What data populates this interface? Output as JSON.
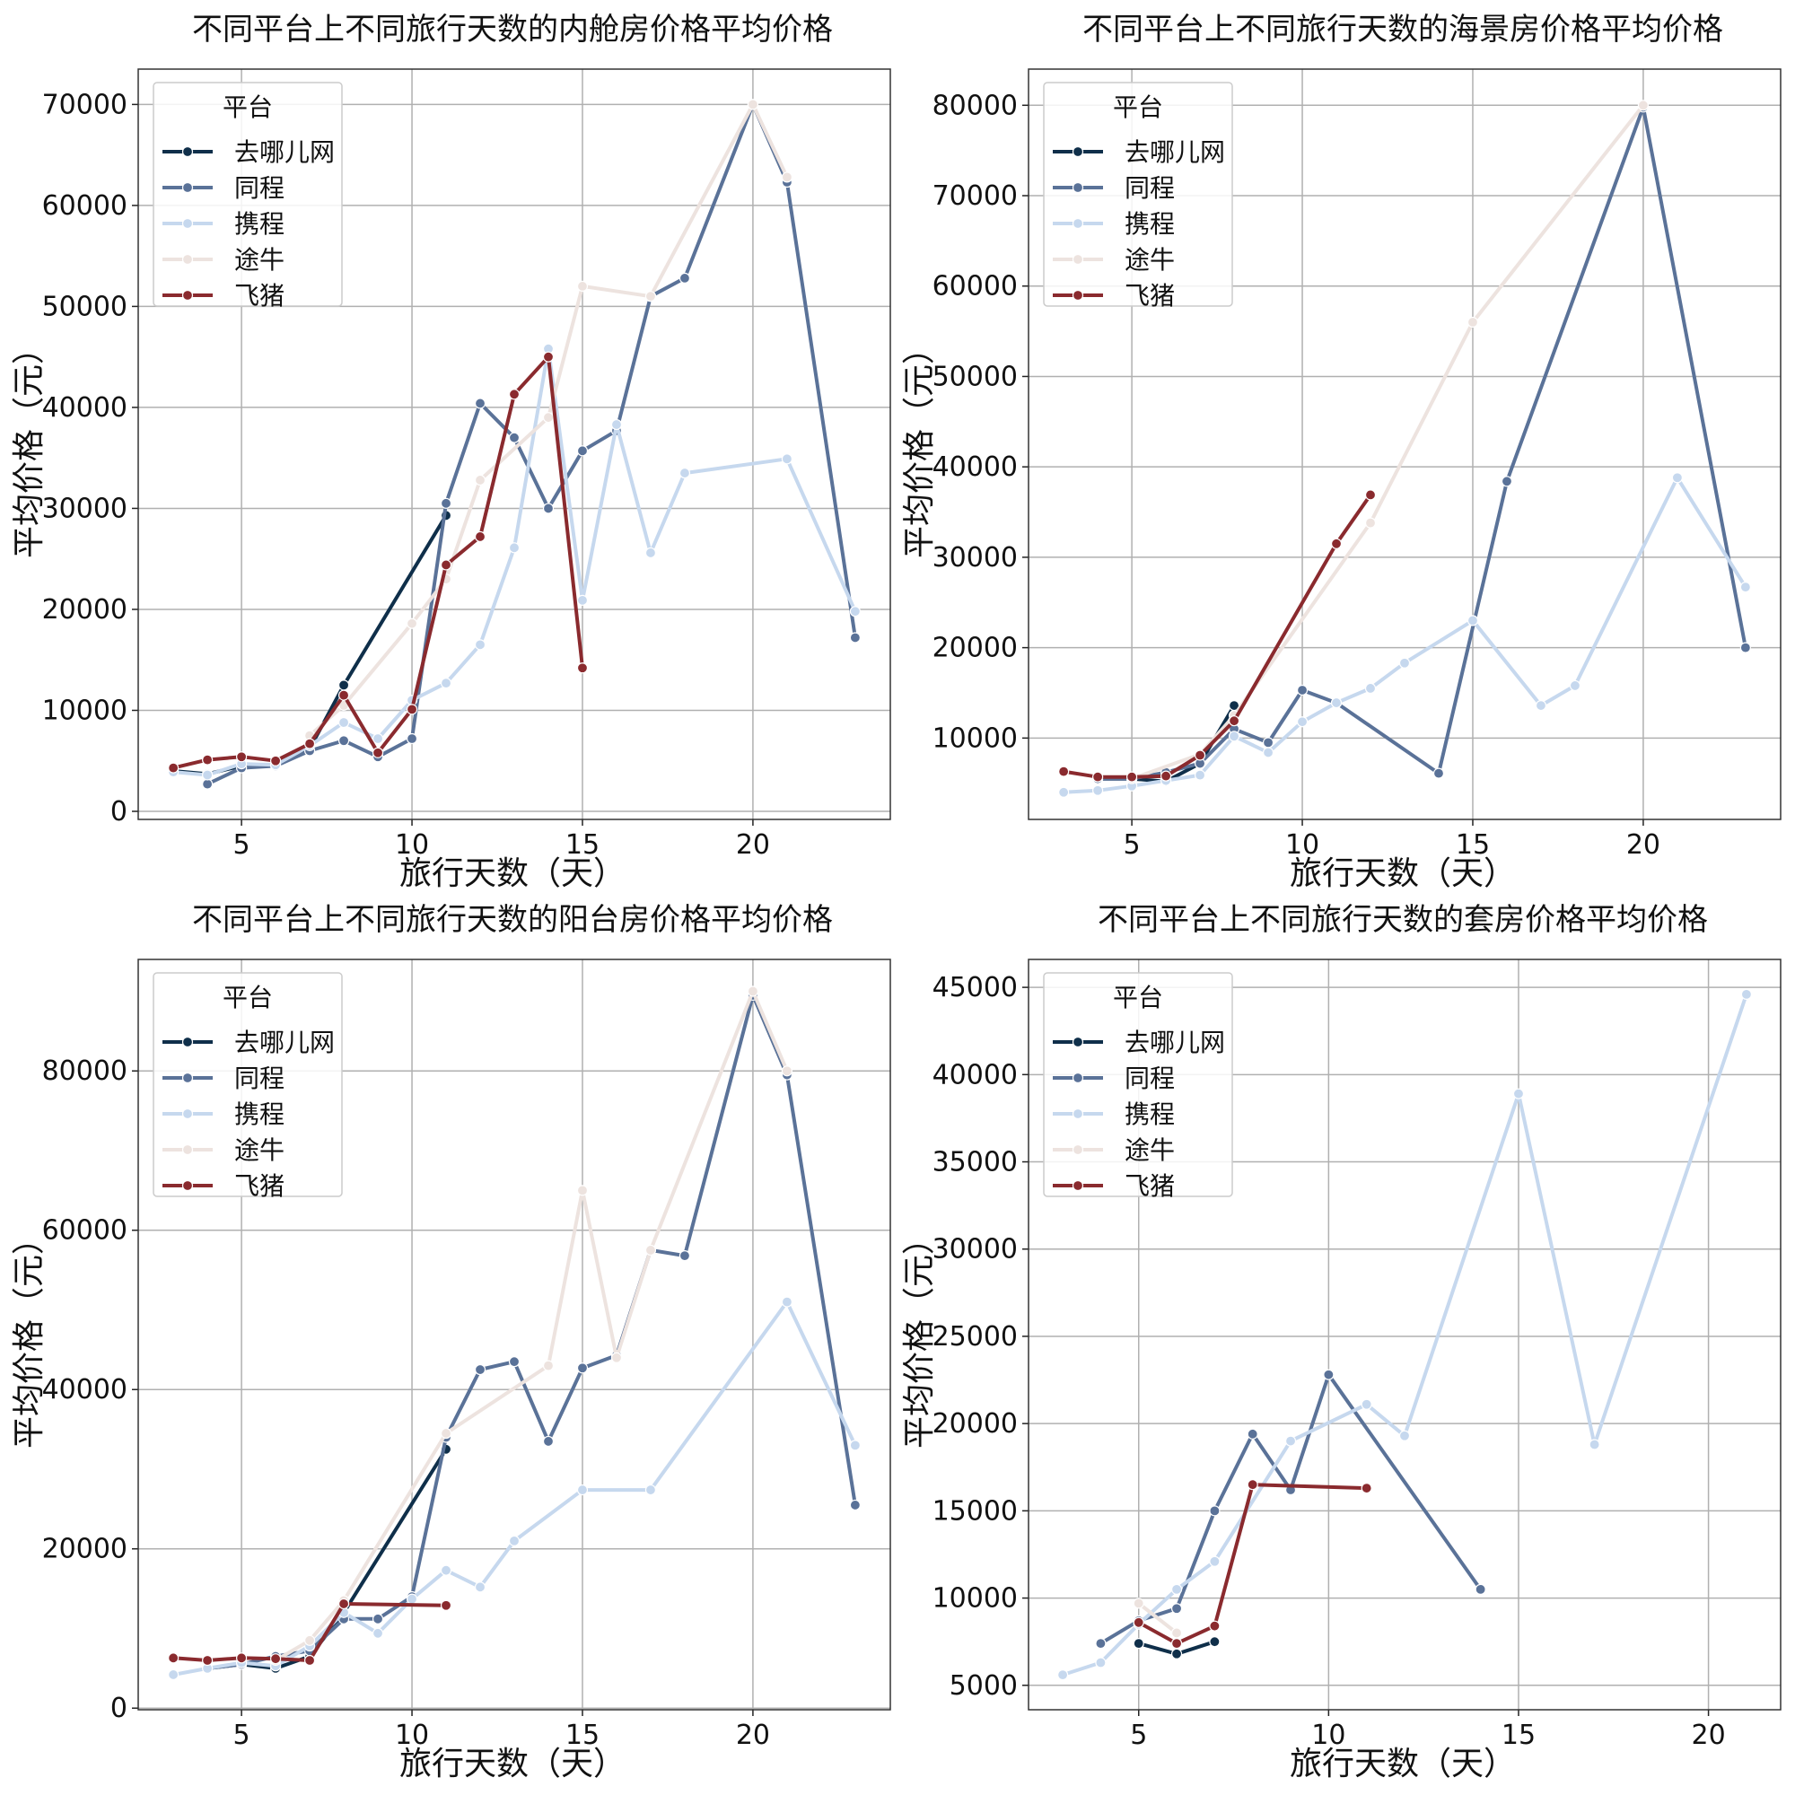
{
  "legend": {
    "title": "平台",
    "platforms": [
      {
        "name": "去哪儿网",
        "color": "#0f2f4a"
      },
      {
        "name": "同程",
        "color": "#5a7298"
      },
      {
        "name": "携程",
        "color": "#c6d8ee"
      },
      {
        "name": "途牛",
        "color": "#ede3df"
      },
      {
        "name": "飞猪",
        "color": "#8a2a2e"
      }
    ]
  },
  "chart_data": [
    {
      "type": "line",
      "title": "不同平台上不同旅行天数的内舱房价格平均价格",
      "xlabel": "旅行天数（天）",
      "ylabel": "平均价格（元）",
      "xlim": [
        1.97,
        24.03
      ],
      "ylim": [
        -800,
        73500
      ],
      "xticks": [
        5,
        10,
        15,
        20
      ],
      "yticks": [
        0,
        10000,
        20000,
        30000,
        40000,
        50000,
        60000,
        70000
      ],
      "grid": true,
      "legend_position": "upper-left",
      "series": [
        {
          "name": "去哪儿网",
          "x": [
            3,
            4,
            5,
            6,
            7,
            8,
            11
          ],
          "y": [
            4000,
            3700,
            4500,
            4500,
            6200,
            12500,
            29300
          ]
        },
        {
          "name": "同程",
          "x": [
            4,
            5,
            6,
            7,
            8,
            9,
            10,
            11,
            12,
            13,
            14,
            15,
            16,
            17,
            18,
            20,
            21,
            23
          ],
          "y": [
            2700,
            4300,
            4500,
            6000,
            7000,
            5400,
            7200,
            30500,
            40400,
            37000,
            30000,
            35700,
            37700,
            51000,
            52800,
            70000,
            62300,
            17200
          ]
        },
        {
          "name": "携程",
          "x": [
            3,
            4,
            5,
            6,
            7,
            8,
            9,
            10,
            11,
            12,
            13,
            14,
            15,
            16,
            17,
            18,
            21,
            23
          ],
          "y": [
            3900,
            3600,
            4700,
            4600,
            6500,
            8800,
            7200,
            11000,
            12700,
            16500,
            26100,
            45800,
            20900,
            38300,
            25600,
            33500,
            34900,
            19800
          ]
        },
        {
          "name": "途牛",
          "x": [
            7,
            8,
            10,
            11,
            12,
            14,
            15,
            17,
            20,
            21
          ],
          "y": [
            7500,
            10500,
            18600,
            23000,
            32800,
            39000,
            52000,
            51000,
            70000,
            62800
          ]
        },
        {
          "name": "飞猪",
          "x": [
            3,
            4,
            5,
            6,
            7,
            8,
            9,
            10,
            11,
            12,
            13,
            14,
            15
          ],
          "y": [
            4300,
            5100,
            5400,
            5000,
            6700,
            11500,
            5800,
            10100,
            24400,
            27200,
            41300,
            45000,
            14200
          ]
        }
      ]
    },
    {
      "type": "line",
      "title": "不同平台上不同旅行天数的海景房价格平均价格",
      "xlabel": "旅行天数（天）",
      "ylabel": "平均价格（元）",
      "xlim": [
        1.97,
        24.03
      ],
      "ylim": [
        1000,
        84000
      ],
      "xticks": [
        5,
        10,
        15,
        20
      ],
      "yticks": [
        10000,
        20000,
        30000,
        40000,
        50000,
        60000,
        70000,
        80000
      ],
      "grid": true,
      "legend_position": "upper-left",
      "series": [
        {
          "name": "去哪儿网",
          "x": [
            4,
            5,
            6,
            7,
            8
          ],
          "y": [
            5500,
            5500,
            5200,
            7200,
            13600
          ]
        },
        {
          "name": "同程",
          "x": [
            4,
            5,
            6,
            7,
            8,
            9,
            10,
            11,
            14,
            16,
            20,
            23
          ],
          "y": [
            5500,
            5500,
            6200,
            7200,
            11000,
            9500,
            15300,
            13900,
            6100,
            38400,
            79800,
            20000
          ]
        },
        {
          "name": "携程",
          "x": [
            3,
            4,
            5,
            6,
            7,
            8,
            9,
            10,
            11,
            12,
            13,
            15,
            17,
            18,
            21,
            23
          ],
          "y": [
            4000,
            4200,
            4700,
            5300,
            5900,
            10200,
            8400,
            11800,
            13900,
            15500,
            18300,
            23000,
            13600,
            15800,
            38800,
            26700
          ]
        },
        {
          "name": "途牛",
          "x": [
            5,
            7,
            8,
            12,
            15,
            20
          ],
          "y": [
            5500,
            8200,
            12500,
            33800,
            56000,
            80000
          ]
        },
        {
          "name": "飞猪",
          "x": [
            3,
            4,
            5,
            6,
            7,
            8,
            11,
            12
          ],
          "y": [
            6300,
            5700,
            5700,
            5800,
            8100,
            11900,
            31500,
            36900
          ]
        }
      ]
    },
    {
      "type": "line",
      "title": "不同平台上不同旅行天数的阳台房价格平均价格",
      "xlabel": "旅行天数（天）",
      "ylabel": "平均价格（元）",
      "xlim": [
        1.97,
        24.03
      ],
      "ylim": [
        -200,
        94000
      ],
      "xticks": [
        5,
        10,
        15,
        20
      ],
      "yticks": [
        0,
        20000,
        40000,
        60000,
        80000
      ],
      "grid": true,
      "legend_position": "upper-left",
      "series": [
        {
          "name": "去哪儿网",
          "x": [
            4,
            5,
            6,
            7,
            8,
            11
          ],
          "y": [
            5000,
            5500,
            5000,
            6500,
            12000,
            32500
          ]
        },
        {
          "name": "同程",
          "x": [
            4,
            5,
            6,
            7,
            8,
            9,
            10,
            11,
            12,
            13,
            14,
            15,
            16,
            17,
            18,
            20,
            21,
            23
          ],
          "y": [
            5000,
            5500,
            6500,
            7200,
            11200,
            11200,
            14000,
            34000,
            42500,
            43500,
            33500,
            42700,
            44300,
            57500,
            56800,
            89500,
            79500,
            25500
          ]
        },
        {
          "name": "携程",
          "x": [
            3,
            4,
            5,
            6,
            7,
            8,
            9,
            10,
            11,
            12,
            13,
            15,
            17,
            21,
            23
          ],
          "y": [
            4200,
            5000,
            5700,
            5300,
            7800,
            12000,
            9400,
            13700,
            17300,
            15200,
            21000,
            27400,
            27400,
            51000,
            33000
          ]
        },
        {
          "name": "途牛",
          "x": [
            6,
            7,
            8,
            11,
            14,
            15,
            16,
            17,
            20,
            21
          ],
          "y": [
            6000,
            8500,
            13500,
            34500,
            43000,
            65000,
            44000,
            57500,
            90000,
            80000
          ]
        },
        {
          "name": "飞猪",
          "x": [
            3,
            4,
            5,
            6,
            7,
            8,
            11
          ],
          "y": [
            6300,
            6000,
            6300,
            6200,
            6000,
            13100,
            12900
          ]
        }
      ]
    },
    {
      "type": "line",
      "title": "不同平台上不同旅行天数的套房价格平均价格",
      "xlabel": "旅行天数（天）",
      "ylabel": "平均价格（元）",
      "xlim": [
        2.1,
        21.9
      ],
      "ylim": [
        3600,
        46600
      ],
      "xticks": [
        5,
        10,
        15,
        20
      ],
      "yticks": [
        5000,
        10000,
        15000,
        20000,
        25000,
        30000,
        35000,
        40000,
        45000
      ],
      "grid": true,
      "legend_position": "upper-left",
      "series": [
        {
          "name": "去哪儿网",
          "x": [
            5,
            6,
            7
          ],
          "y": [
            7400,
            6800,
            7500
          ]
        },
        {
          "name": "同程",
          "x": [
            4,
            5,
            6,
            7,
            8,
            9,
            10,
            14
          ],
          "y": [
            7400,
            8700,
            9400,
            15000,
            19400,
            16200,
            22800,
            10500
          ]
        },
        {
          "name": "携程",
          "x": [
            3,
            4,
            5,
            6,
            7,
            9,
            11,
            12,
            15,
            17,
            21
          ],
          "y": [
            5600,
            6300,
            8500,
            10500,
            12100,
            19000,
            21100,
            19300,
            38900,
            18800,
            44600
          ]
        },
        {
          "name": "途牛",
          "x": [
            5,
            6
          ],
          "y": [
            9700,
            8000
          ]
        },
        {
          "name": "飞猪",
          "x": [
            5,
            6,
            7,
            8,
            11
          ],
          "y": [
            8600,
            7400,
            8400,
            16500,
            16300
          ]
        }
      ]
    }
  ]
}
